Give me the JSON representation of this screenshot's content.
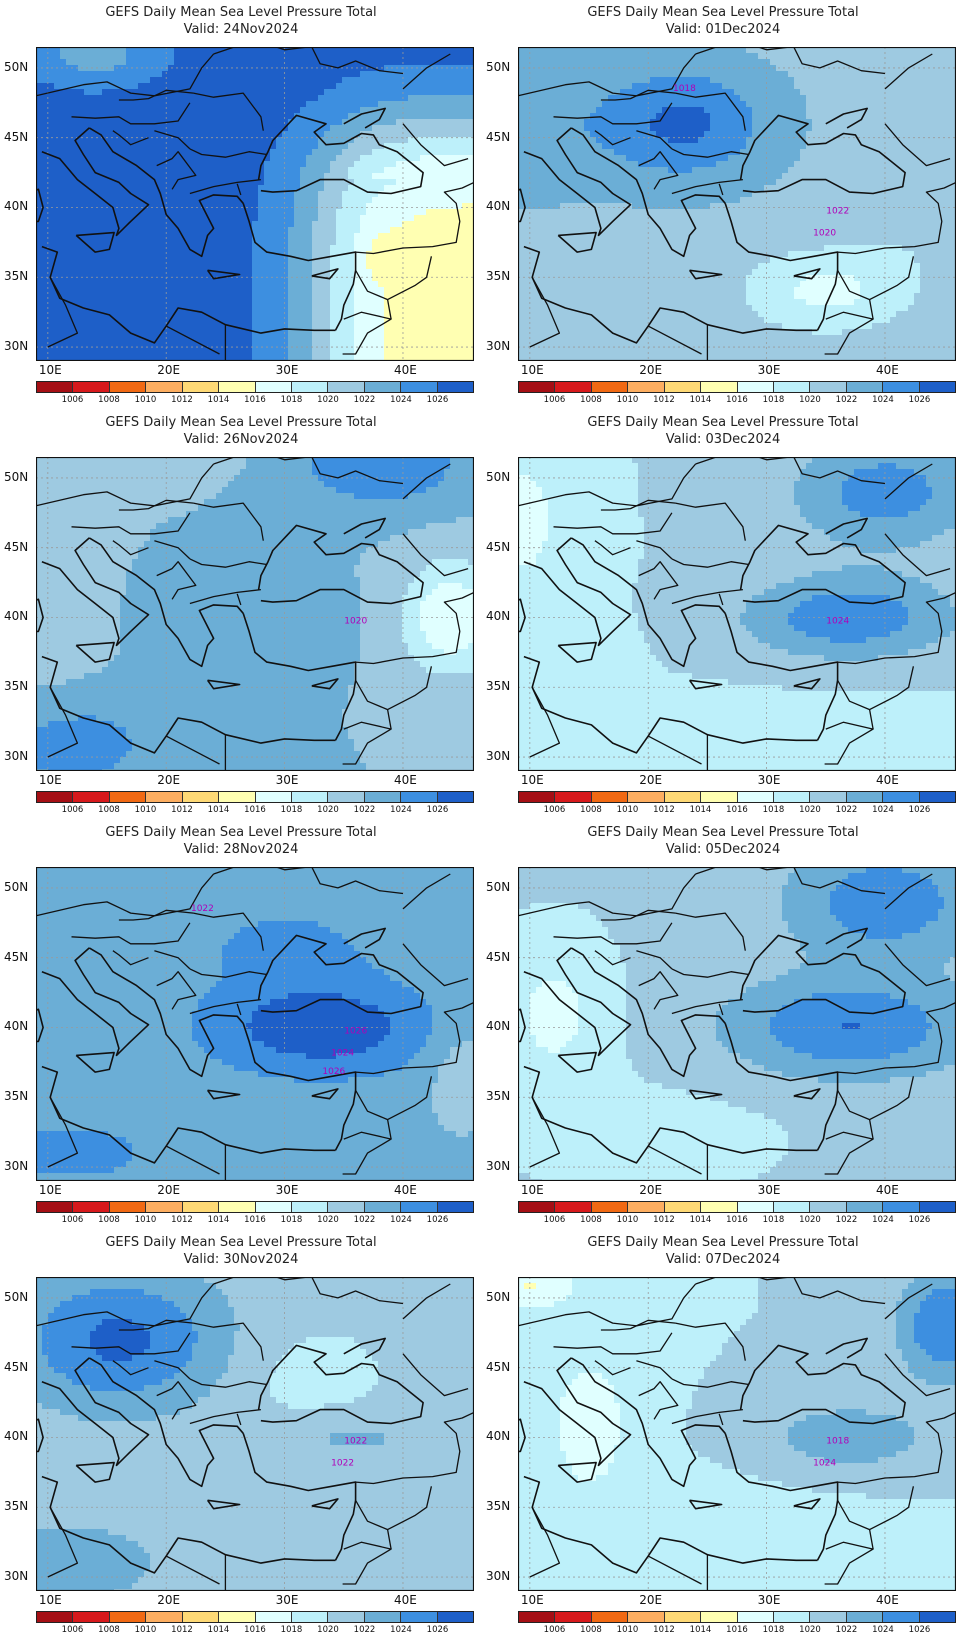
{
  "title_prefix": "GEFS Daily Mean Sea Level Pressure Total",
  "panels": [
    {
      "title": "GEFS Daily Mean Sea Level Pressure Total",
      "valid": "Valid: 24Nov2024",
      "scenario": "warm_east",
      "contour_labels": []
    },
    {
      "title": "GEFS Daily Mean Sea Level Pressure Total",
      "valid": "Valid: 01Dec2024",
      "scenario": "high_balkan",
      "contour_labels": [
        "1022",
        "1020",
        "1018"
      ]
    },
    {
      "title": "GEFS Daily Mean Sea Level Pressure Total",
      "valid": "Valid: 26Nov2024",
      "scenario": "mixed",
      "contour_labels": [
        "1020"
      ]
    },
    {
      "title": "GEFS Daily Mean Sea Level Pressure Total",
      "valid": "Valid: 03Dec2024",
      "scenario": "high_turkey",
      "contour_labels": [
        "1024"
      ]
    },
    {
      "title": "GEFS Daily Mean Sea Level Pressure Total",
      "valid": "Valid: 28Nov2024",
      "scenario": "high_turkey_strong",
      "contour_labels": [
        "1026",
        "1024",
        "1022",
        "1026"
      ]
    },
    {
      "title": "GEFS Daily Mean Sea Level Pressure Total",
      "valid": "Valid: 05Dec2024",
      "scenario": "high_turkey2",
      "contour_labels": []
    },
    {
      "title": "GEFS Daily Mean Sea Level Pressure Total",
      "valid": "Valid: 30Nov2024",
      "scenario": "high_nw",
      "contour_labels": [
        "1022",
        "1022"
      ]
    },
    {
      "title": "GEFS Daily Mean Sea Level Pressure Total",
      "valid": "Valid: 07Dec2024",
      "scenario": "weak",
      "contour_labels": [
        "1018",
        "1024"
      ]
    }
  ],
  "axes": {
    "lon_labels": [
      "10E",
      "20E",
      "30E",
      "40E"
    ],
    "lat_labels": [
      "50N",
      "45N",
      "40N",
      "35N",
      "30N"
    ]
  },
  "colorbar": {
    "labels": [
      "1006",
      "1008",
      "1010",
      "1012",
      "1014",
      "1016",
      "1018",
      "1020",
      "1022",
      "1024",
      "1026"
    ],
    "colors": [
      "#a50f15",
      "#d7191c",
      "#f16913",
      "#fdae61",
      "#fed976",
      "#ffffb2",
      "#e0ffff",
      "#bdf0fa",
      "#9ecae1",
      "#6baed6",
      "#3d8fe0",
      "#1e5fc8"
    ]
  }
}
